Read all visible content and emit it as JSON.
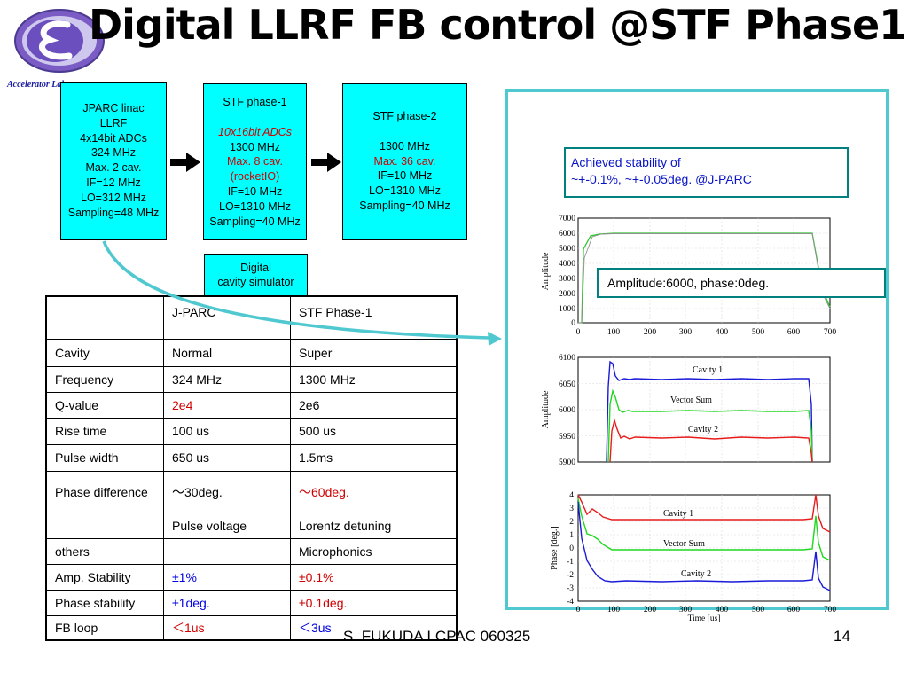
{
  "title": "Digital LLRF FB control @STF Phase1",
  "lab_name": "Accelerator Laboratory",
  "blocks": {
    "jparc": [
      "JPARC linac",
      "LLRF",
      "4x14bit ADCs",
      "324 MHz",
      "Max. 2 cav.",
      "IF=12 MHz",
      "LO=312 MHz",
      "Sampling=48 MHz"
    ],
    "stf1": {
      "heading": "STF phase-1",
      "adcs": "10x16bit ADCs",
      "freq": "1300 MHz",
      "red_lines": [
        "Max. 8 cav.",
        "(rocketIO)"
      ],
      "lines": [
        "IF=10 MHz",
        "LO=1310 MHz",
        "Sampling=40 MHz"
      ]
    },
    "stf2": {
      "heading": "STF phase-2",
      "freq": "1300 MHz",
      "red_line": "Max. 36 cav.",
      "lines": [
        "IF=10 MHz",
        "LO=1310 MHz",
        "Sampling=40 MHz"
      ]
    },
    "simulator": [
      "Digital",
      "cavity simulator"
    ]
  },
  "stability_note": [
    "Achieved stability of",
    "~+-0.1%, ~+-0.05deg. @J-PARC"
  ],
  "amplitude_note": "Amplitude:6000, phase:0deg.",
  "table": {
    "header": [
      "",
      "J-PARC",
      "STF Phase-1"
    ],
    "rows": [
      [
        "Cavity",
        "Normal",
        "Super"
      ],
      [
        "Frequency",
        "324 MHz",
        "1300 MHz"
      ],
      [
        "Q-value",
        "2e4",
        "2e6"
      ],
      [
        "Rise time",
        "100 us",
        "500 us"
      ],
      [
        "Pulse width",
        "650 us",
        "1.5ms"
      ],
      [
        "Phase difference",
        "～30deg.",
        "～60deg."
      ],
      [
        "",
        "Pulse voltage",
        "Lorentz detuning"
      ],
      [
        "others",
        "",
        "Microphonics"
      ],
      [
        "Amp. Stability",
        "±1%",
        "±0.1%"
      ],
      [
        "Phase stability",
        "±1deg.",
        "±0.1deg."
      ],
      [
        "FB loop",
        "＜1us",
        "＜3us"
      ]
    ]
  },
  "plots": {
    "amplitude": {
      "ylabel": "Amplitude",
      "yticks": [
        "7000",
        "6000",
        "5000",
        "4000",
        "3000",
        "2000",
        "1000",
        "0"
      ],
      "xticks": [
        "0",
        "100",
        "200",
        "300",
        "400",
        "500",
        "600",
        "700"
      ]
    },
    "zoom": {
      "ylabel": "Amplitude",
      "yticks": [
        "6100",
        "6050",
        "6000",
        "5950",
        "5900"
      ],
      "labels": [
        "Cavity 1",
        "Vector Sum",
        "Cavity 2"
      ]
    },
    "phase": {
      "ylabel": "Phase [deg.]",
      "yticks": [
        "4",
        "3",
        "2",
        "1",
        "0",
        "-1",
        "-2",
        "-3",
        "-4"
      ],
      "xticks": [
        "0",
        "100",
        "200",
        "300",
        "400",
        "500",
        "600",
        "700"
      ],
      "xlabel": "Time [us]",
      "labels": [
        "Cavity 1",
        "Vector Sum",
        "Cavity 2"
      ]
    }
  },
  "footer": "S. FUKUDA LCPAC 060325",
  "page_number": "14",
  "colors": {
    "box": "#00ffff",
    "panel_border": "#4fc8d0",
    "note_border": "#00807f",
    "note_text": "#0a15c8",
    "accent_red": "#d00000"
  }
}
